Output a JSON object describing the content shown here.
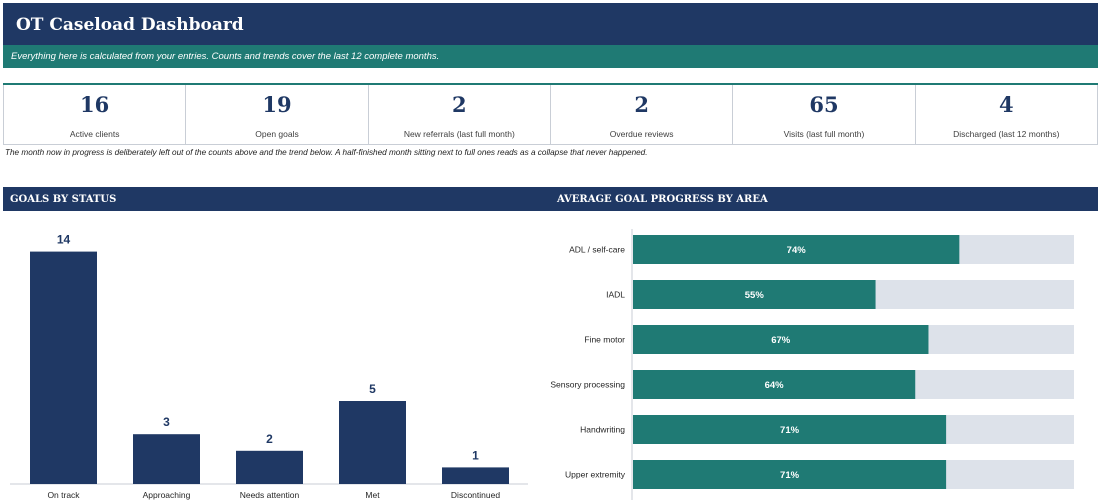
{
  "header": {
    "title": "OT Caseload Dashboard",
    "subtitle": "Everything here is calculated from your entries. Counts and trends cover the last 12 complete months."
  },
  "kpis": [
    {
      "value": "16",
      "label": "Active clients"
    },
    {
      "value": "19",
      "label": "Open goals"
    },
    {
      "value": "2",
      "label": "New referrals (last full month)"
    },
    {
      "value": "2",
      "label": "Overdue reviews"
    },
    {
      "value": "65",
      "label": "Visits (last full month)"
    },
    {
      "value": "4",
      "label": "Discharged (last 12 months)"
    }
  ],
  "note": "The month now in progress is deliberately left out of the counts above and the trend below. A half-finished month sitting next to full ones reads as a collapse that never happened.",
  "sections": {
    "goals_by_status": "GOALS BY STATUS",
    "avg_progress": "AVERAGE GOAL PROGRESS BY AREA"
  },
  "colors": {
    "navy": "#1f3864",
    "teal": "#1f7a74",
    "track": "#dde2ea"
  },
  "chart_data": [
    {
      "type": "bar",
      "title": "GOALS BY STATUS",
      "categories": [
        "On track",
        "Approaching",
        "Needs attention",
        "Met",
        "Discontinued"
      ],
      "values": [
        14,
        3,
        2,
        5,
        1
      ],
      "ylim": [
        0,
        15
      ]
    },
    {
      "type": "bar",
      "orientation": "horizontal",
      "title": "AVERAGE GOAL PROGRESS BY AREA",
      "categories": [
        "ADL / self-care",
        "IADL",
        "Fine motor",
        "Sensory processing",
        "Handwriting",
        "Upper extremity"
      ],
      "values": [
        74,
        55,
        67,
        64,
        71,
        71
      ],
      "value_labels": [
        "74%",
        "55%",
        "67%",
        "64%",
        "71%",
        "71%"
      ],
      "xlim": [
        0,
        100
      ]
    }
  ]
}
